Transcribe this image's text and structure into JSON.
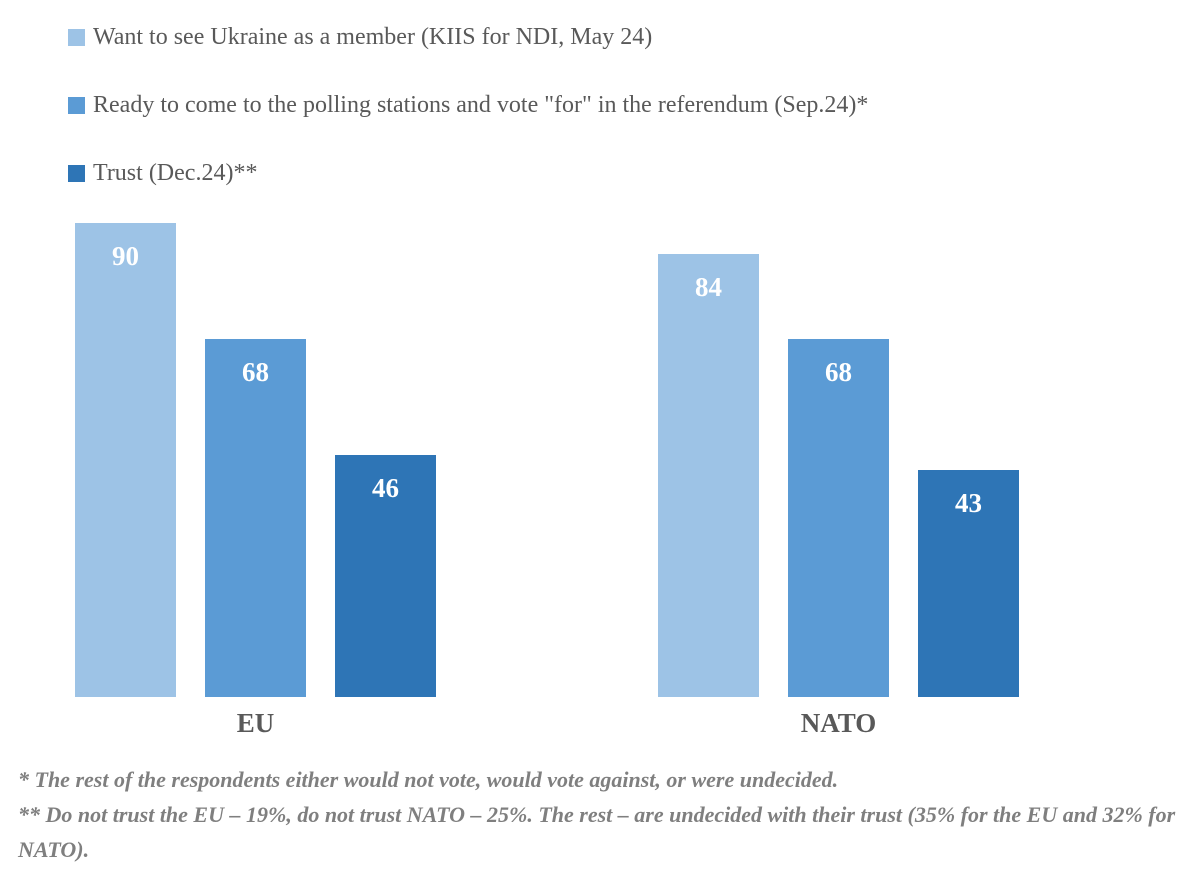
{
  "chart_data": {
    "type": "bar",
    "categories": [
      "EU",
      "NATO"
    ],
    "series": [
      {
        "name": "Want to see Ukraine as a member (KIIS for NDI, May 24)",
        "color": "#9DC3E6",
        "values": [
          90,
          84
        ]
      },
      {
        "name": "Ready to come to the polling stations and vote \"for\" in the referendum (Sep.24)*",
        "color": "#5B9BD5",
        "values": [
          68,
          68
        ]
      },
      {
        "name": "Trust (Dec.24)**",
        "color": "#2E75B6",
        "values": [
          46,
          43
        ]
      }
    ],
    "ylim": [
      0,
      100
    ],
    "data_labels": true,
    "data_label_color": "#FFFFFF",
    "legend_position": "top-left",
    "grid": false,
    "axes_hidden": true,
    "title": "",
    "xlabel": "",
    "ylabel": ""
  },
  "colors": {
    "background": "#FFFFFF",
    "legend_text": "#595959",
    "category_label_text": "#595959",
    "footnote_text": "#7F7F7F"
  },
  "footnotes": [
    "* The rest of the respondents either would not vote, would vote against, or were undecided.",
    "** Do not trust the EU – 19%, do not trust NATO – 25%. The rest – are undecided with their trust (35% for the EU and 32% for NATO)."
  ]
}
